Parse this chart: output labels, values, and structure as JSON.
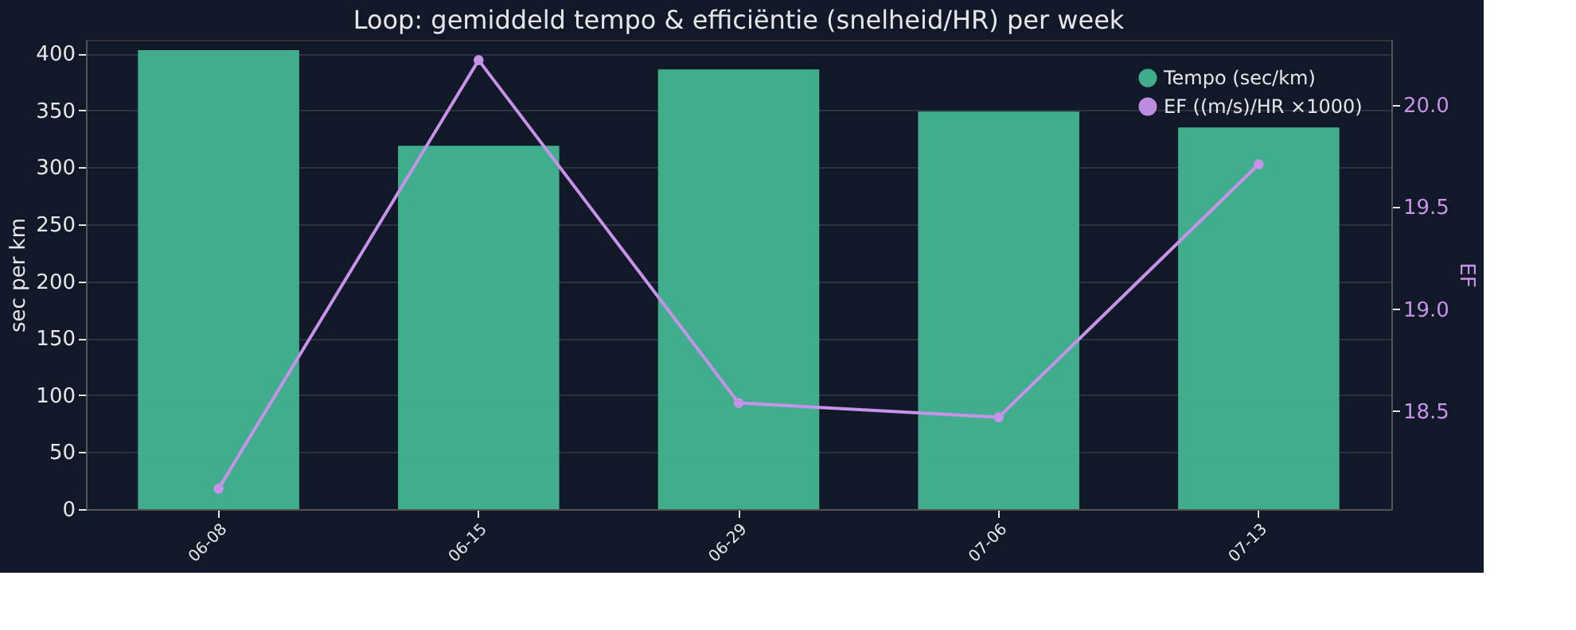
{
  "chart_data": {
    "type": "bar",
    "title": "Loop: gemiddeld tempo & efficiëntie (snelheid/HR) per week",
    "categories": [
      "06-08",
      "06-15",
      "06-29",
      "07-06",
      "07-13"
    ],
    "series": [
      {
        "name": "Tempo (sec/km)",
        "color": "#43b692",
        "values": [
          403,
          319,
          386,
          349,
          335
        ]
      },
      {
        "name": "EF ((m/s)/HR ×1000)",
        "type": "line",
        "axis": "y2",
        "color": "#c792ea",
        "marker": "circle",
        "values": [
          18.12,
          20.22,
          18.54,
          18.47,
          19.71
        ]
      }
    ],
    "ylabel": "sec per km",
    "y2label": "EF",
    "ylim": [
      0,
      412
    ],
    "yticks": [
      0,
      50,
      100,
      150,
      200,
      250,
      300,
      350,
      400
    ],
    "y2lim": [
      18.02,
      20.32
    ],
    "y2ticks": [
      18.5,
      {
        "value": 19,
        "label": "19.0"
      },
      19.5,
      {
        "value": 20,
        "label": "20.0"
      }
    ],
    "grid": "y",
    "legend": "top right"
  }
}
